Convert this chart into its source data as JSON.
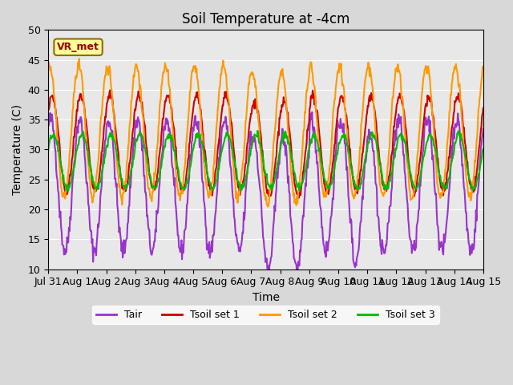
{
  "title": "Soil Temperature at -4cm",
  "xlabel": "Time",
  "ylabel": "Temperature (C)",
  "ylim": [
    10,
    50
  ],
  "label_box": "VR_met",
  "colors": {
    "Tair": "#9933cc",
    "Tsoil set 1": "#cc0000",
    "Tsoil set 2": "#ff9900",
    "Tsoil set 3": "#00bb00"
  },
  "linewidth": 1.5,
  "num_days": 15,
  "hours_per_day": 48,
  "tair_base": 24,
  "tair_amp": 11,
  "tsoil1_base": 31,
  "tsoil1_amp": 8,
  "tsoil2_base": 33,
  "tsoil2_amp": 11,
  "tsoil3_base": 28,
  "tsoil3_amp": 4.5,
  "tick_labels": [
    "Jul 31",
    "Aug 1",
    "Aug 2",
    "Aug 3",
    "Aug 4",
    "Aug 5",
    "Aug 6",
    "Aug 7",
    "Aug 8",
    "Aug 9",
    "Aug 10",
    "Aug 11",
    "Aug 12",
    "Aug 13",
    "Aug 14",
    "Aug 15"
  ],
  "yticks": [
    10,
    15,
    20,
    25,
    30,
    35,
    40,
    45,
    50
  ]
}
